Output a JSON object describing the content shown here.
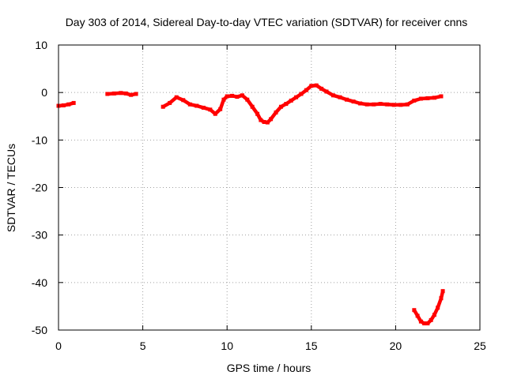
{
  "chart_data": {
    "type": "scatter",
    "title": "Day 303 of 2014, Sidereal Day-to-day VTEC variation (SDTVAR) for receiver cnns",
    "xlabel": "GPS time / hours",
    "ylabel": "SDTVAR / TECUs",
    "xlim": [
      0,
      25
    ],
    "ylim": [
      -50,
      10
    ],
    "xticks": [
      0,
      5,
      10,
      15,
      20,
      25
    ],
    "yticks": [
      10,
      0,
      -10,
      -20,
      -30,
      -40,
      -50
    ],
    "grid": true,
    "color": "#ff0000",
    "series": [
      {
        "name": "segment-1",
        "x": [
          0.0,
          0.3,
          0.6,
          0.9
        ],
        "y": [
          -2.8,
          -2.7,
          -2.5,
          -2.2
        ]
      },
      {
        "name": "segment-2",
        "x": [
          2.9,
          3.3,
          3.7,
          4.0,
          4.3,
          4.6
        ],
        "y": [
          -0.3,
          -0.2,
          -0.1,
          -0.2,
          -0.5,
          -0.3
        ]
      },
      {
        "name": "segment-3",
        "x": [
          6.2,
          6.6,
          7.0,
          7.4,
          7.8,
          8.2,
          8.6,
          9.0,
          9.3,
          9.6,
          9.8,
          10.0,
          10.3,
          10.6,
          10.9,
          11.2,
          11.5,
          11.8,
          12.0,
          12.2,
          12.4,
          12.6,
          12.9,
          13.2,
          13.5,
          13.8,
          14.1,
          14.4,
          14.7,
          15.0,
          15.3,
          15.6,
          15.9,
          16.3,
          16.7,
          17.1,
          17.5,
          17.9,
          18.3,
          18.7,
          19.1,
          19.5,
          19.9,
          20.3,
          20.7,
          21.1,
          21.5,
          21.9,
          22.3,
          22.7
        ],
        "y": [
          -3.0,
          -2.2,
          -1.0,
          -1.6,
          -2.5,
          -2.8,
          -3.2,
          -3.6,
          -4.5,
          -3.5,
          -1.5,
          -0.8,
          -0.7,
          -0.9,
          -0.6,
          -1.5,
          -3.0,
          -4.5,
          -5.8,
          -6.2,
          -6.3,
          -5.6,
          -4.2,
          -3.0,
          -2.4,
          -1.7,
          -1.0,
          -0.3,
          0.5,
          1.4,
          1.5,
          0.8,
          0.2,
          -0.6,
          -1.0,
          -1.5,
          -1.9,
          -2.3,
          -2.5,
          -2.5,
          -2.4,
          -2.5,
          -2.6,
          -2.6,
          -2.5,
          -1.7,
          -1.3,
          -1.2,
          -1.1,
          -0.8
        ]
      },
      {
        "name": "segment-4",
        "x": [
          21.1,
          21.3,
          21.5,
          21.7,
          21.9,
          22.1,
          22.3,
          22.5,
          22.7,
          22.8
        ],
        "y": [
          -45.8,
          -47.0,
          -48.2,
          -48.6,
          -48.6,
          -47.9,
          -46.8,
          -45.3,
          -43.3,
          -41.8
        ]
      }
    ]
  }
}
